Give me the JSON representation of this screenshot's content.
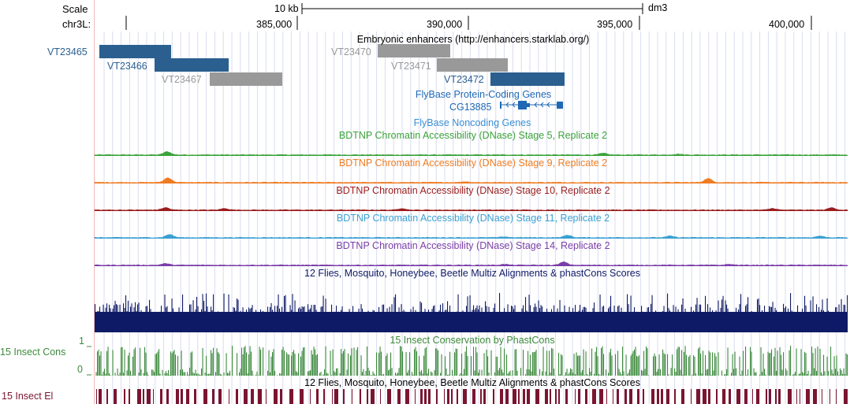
{
  "scale": {
    "label": "Scale",
    "chrom_label": "chr3L:",
    "bar_label": "10 kb",
    "assembly": "dm3",
    "ticks": [
      "385,000",
      "390,000",
      "395,000",
      "400,000"
    ]
  },
  "tracks": {
    "enhancers": {
      "title": "Embryonic enhancers (http://enhancers.starklab.org/)",
      "features": [
        {
          "name": "VT23465",
          "color": "#2b5f8f"
        },
        {
          "name": "VT23466",
          "color": "#2b5f8f"
        },
        {
          "name": "VT23467",
          "color": "#999999"
        },
        {
          "name": "VT23470",
          "color": "#999999"
        },
        {
          "name": "VT23471",
          "color": "#999999"
        },
        {
          "name": "VT23472",
          "color": "#2b5f8f"
        }
      ]
    },
    "flybase_coding": {
      "title": "FlyBase Protein-Coding Genes",
      "gene": "CG13885",
      "color": "#1f68b5"
    },
    "flybase_noncoding": {
      "title": "FlyBase Noncoding Genes",
      "color": "#3a8fd4"
    },
    "dnase": [
      {
        "title": "BDTNP Chromatin Accessibility (DNase) Stage 5, Replicate 2",
        "color": "#3aa33a"
      },
      {
        "title": "BDTNP Chromatin Accessibility (DNase) Stage 9, Replicate 2",
        "color": "#f07c22"
      },
      {
        "title": "BDTNP Chromatin Accessibility (DNase) Stage 10, Replicate 2",
        "color": "#9b1c1c"
      },
      {
        "title": "BDTNP Chromatin Accessibility (DNase) Stage 11, Replicate 2",
        "color": "#3aa0d2"
      },
      {
        "title": "BDTNP Chromatin Accessibility (DNase) Stage 14, Replicate 2",
        "color": "#7a3ea8"
      }
    ],
    "multiz": {
      "title": "12 Flies, Mosquito, Honeybee, Beetle Multiz Alignments & phastCons Scores",
      "color": "#0f1a66"
    },
    "cons": {
      "title": "15 Insect Conservation by PhastCons",
      "side_label": "15 Insect Cons",
      "ymax": "1",
      "ymin": "0",
      "color": "#3d8a3d"
    },
    "elements": {
      "title": "12 Flies, Mosquito, Honeybee, Beetle Multiz Alignments & phastCons Scores",
      "side_label": "15 Insect El",
      "color": "#7a1530"
    }
  }
}
